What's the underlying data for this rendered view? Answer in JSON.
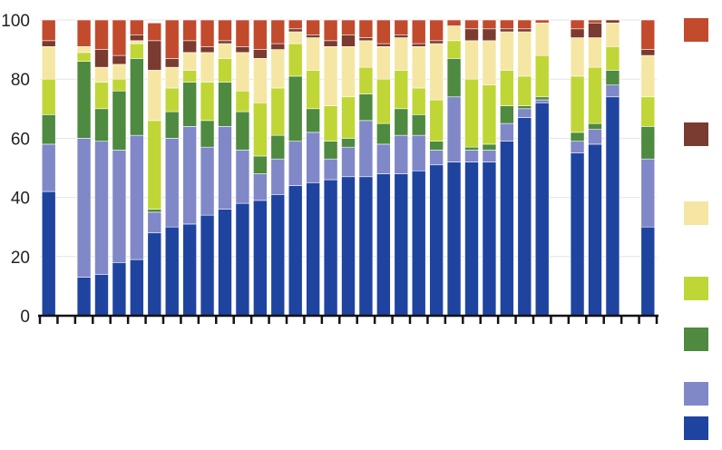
{
  "chart_data": {
    "type": "bar",
    "stacked": true,
    "title": "",
    "xlabel": "",
    "ylabel": "",
    "ylim": [
      0,
      100
    ],
    "yticks": [
      "0",
      "20",
      "40",
      "60",
      "80",
      "100"
    ],
    "grid": true,
    "legend_position": "right",
    "series_colors": [
      "#1f44a0",
      "#8088c8",
      "#4e8a3f",
      "#c0d636",
      "#f5e6a3",
      "#7a3b30",
      "#c24a2d"
    ],
    "stacks": [
      [
        42,
        16,
        10,
        12,
        11,
        2,
        7
      ],
      null,
      [
        13,
        47,
        26,
        3,
        2,
        0,
        9
      ],
      [
        14,
        45,
        11,
        9,
        5,
        6,
        10
      ],
      [
        18,
        38,
        20,
        4,
        5,
        3,
        12
      ],
      [
        19,
        42,
        26,
        5,
        1,
        2,
        5
      ],
      [
        28,
        7,
        1,
        30,
        17,
        10,
        6
      ],
      [
        30,
        30,
        9,
        8,
        7,
        3,
        13
      ],
      [
        31,
        33,
        15,
        4,
        6,
        4,
        7
      ],
      [
        34,
        23,
        9,
        13,
        10,
        2,
        9
      ],
      [
        36,
        28,
        15,
        8,
        5,
        1,
        7
      ],
      [
        38,
        18,
        13,
        7,
        13,
        2,
        9
      ],
      [
        39,
        9,
        6,
        18,
        15,
        3,
        10
      ],
      [
        41,
        12,
        8,
        16,
        13,
        2,
        8
      ],
      [
        44,
        15,
        22,
        11,
        4,
        1,
        3
      ],
      [
        45,
        17,
        8,
        13,
        11,
        1,
        5
      ],
      [
        46,
        7,
        6,
        12,
        20,
        2,
        7
      ],
      [
        47,
        10,
        3,
        14,
        17,
        4,
        5
      ],
      [
        47,
        19,
        9,
        9,
        9,
        1,
        6
      ],
      [
        48,
        10,
        7,
        15,
        11,
        1,
        8
      ],
      [
        48,
        13,
        9,
        13,
        11,
        1,
        5
      ],
      [
        49,
        12,
        7,
        9,
        14,
        1,
        8
      ],
      [
        51,
        5,
        3,
        14,
        19,
        1,
        7
      ],
      [
        52,
        22,
        13,
        6,
        5,
        0,
        2
      ],
      [
        52,
        4,
        1,
        23,
        13,
        4,
        3
      ],
      [
        52,
        4,
        2,
        20,
        15,
        4,
        3
      ],
      [
        59,
        6,
        6,
        12,
        13,
        1,
        3
      ],
      [
        67,
        3,
        1,
        10,
        15,
        1,
        3
      ],
      [
        72,
        1,
        1,
        14,
        11,
        0,
        1
      ],
      null,
      [
        55,
        4,
        3,
        19,
        13,
        3,
        3
      ],
      [
        58,
        5,
        2,
        19,
        10,
        5,
        1
      ],
      [
        74,
        4,
        5,
        8,
        8,
        1,
        0
      ],
      null,
      [
        30,
        23,
        11,
        10,
        14,
        2,
        10
      ]
    ]
  }
}
